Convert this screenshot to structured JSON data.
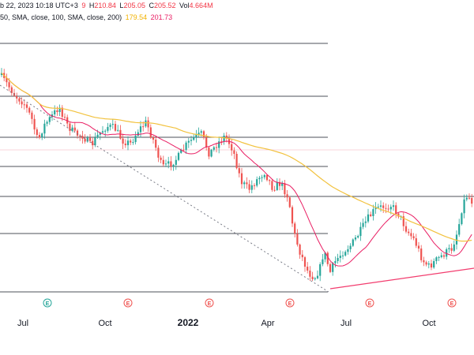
{
  "legend": {
    "line1": {
      "date_text": "b 22, 2023 10:18 UTC+3",
      "open_tail": "9",
      "high_label": "H",
      "high_value": "210.84",
      "low_label": "L",
      "low_value": "205.05",
      "close_label": "C",
      "close_value": "205.52",
      "volume_label": "Vol",
      "volume_value": "4.664M"
    },
    "line2": {
      "params": "50, SMA, close, 100, SMA, close, 200)",
      "value_1": "179.54",
      "value_2": "201.73"
    }
  },
  "colors": {
    "up": "#26a69a",
    "down": "#ef5350",
    "ma_fast": "#e91e63",
    "ma_slow": "#f2c23e",
    "level_line": "#131722",
    "trendline": "#f23c6e",
    "dotted_trend": "#787b86",
    "earnings_up": "#26a69a",
    "earnings_down": "#ef5350"
  },
  "x_axis": {
    "ticks": [
      {
        "label": "Jul",
        "strong": false
      },
      {
        "label": "Oct",
        "strong": false
      },
      {
        "label": "2022",
        "strong": true
      },
      {
        "label": "Apr",
        "strong": false
      },
      {
        "label": "Jul",
        "strong": false
      },
      {
        "label": "Oct",
        "strong": false
      }
    ]
  },
  "earnings_markers": [
    {
      "letter": "E",
      "kind": "up"
    },
    {
      "letter": "E",
      "kind": "down"
    },
    {
      "letter": "E",
      "kind": "down"
    },
    {
      "letter": "E",
      "kind": "down"
    },
    {
      "letter": "E",
      "kind": "down"
    },
    {
      "letter": "E",
      "kind": "down"
    }
  ],
  "chart_data": {
    "type": "candlestick",
    "x_range": [
      "2021-05",
      "2022-11"
    ],
    "horizontal_levels_count": 8,
    "grid": false
  }
}
